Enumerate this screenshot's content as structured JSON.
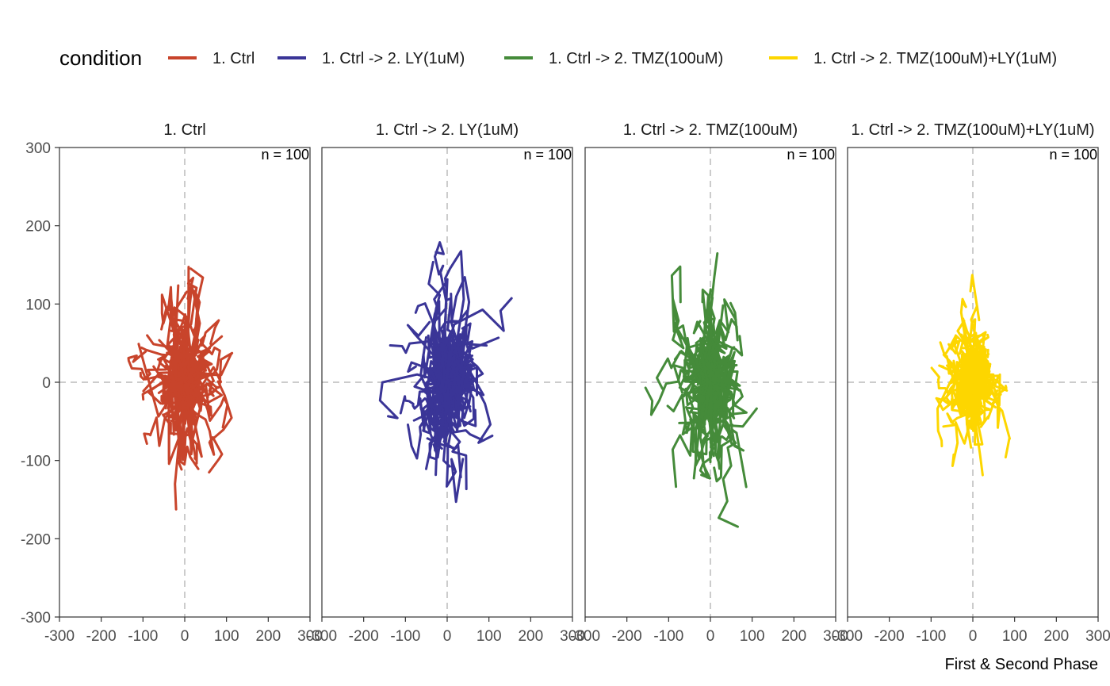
{
  "chart_data": {
    "type": "line",
    "legend": {
      "title": "condition",
      "placement": "top",
      "entries": [
        {
          "label": "1. Ctrl",
          "color": "#c8442b"
        },
        {
          "label": "1. Ctrl -> 2. LY(1uM)",
          "color": "#3a3597"
        },
        {
          "label": "1. Ctrl -> 2. TMZ(100uM)",
          "color": "#458b3a"
        },
        {
          "label": "1. Ctrl -> 2. TMZ(100uM)+LY(1uM)",
          "color": "#fdd600"
        }
      ]
    },
    "xlim": [
      -300,
      300
    ],
    "ylim": [
      -300,
      300
    ],
    "x_ticks": [
      -300,
      -200,
      -100,
      0,
      100,
      200,
      300
    ],
    "y_ticks": [
      -300,
      -200,
      -100,
      0,
      100,
      200,
      300
    ],
    "reference_lines": {
      "x": 0,
      "y": 0
    },
    "caption": "First & Second Phase",
    "panels": [
      {
        "name": "1. Ctrl",
        "strip": "1. Ctrl",
        "annotation": "n = 100",
        "color": "#c8442b",
        "tracks": 100,
        "spread_x": 26,
        "spread_y": 32,
        "seed": 11
      },
      {
        "name": "1. Ctrl -> 2. LY(1uM)",
        "strip": "1. Ctrl -> 2. LY(1uM)",
        "annotation": "n = 100",
        "color": "#3a3597",
        "tracks": 100,
        "spread_x": 30,
        "spread_y": 36,
        "seed": 23
      },
      {
        "name": "1. Ctrl -> 2. TMZ(100uM)",
        "strip": "1. Ctrl -> 2. TMZ(100uM)",
        "annotation": "n = 100",
        "color": "#458b3a",
        "tracks": 100,
        "spread_x": 28,
        "spread_y": 34,
        "seed": 37
      },
      {
        "name": "1. Ctrl -> 2. TMZ(100uM)+LY(1uM)",
        "strip": "1. Ctrl -> 2. TMZ(100uM)+LY(1uM)",
        "annotation": "n = 100",
        "color": "#fdd600",
        "tracks": 100,
        "spread_x": 22,
        "spread_y": 26,
        "seed": 51
      }
    ]
  }
}
